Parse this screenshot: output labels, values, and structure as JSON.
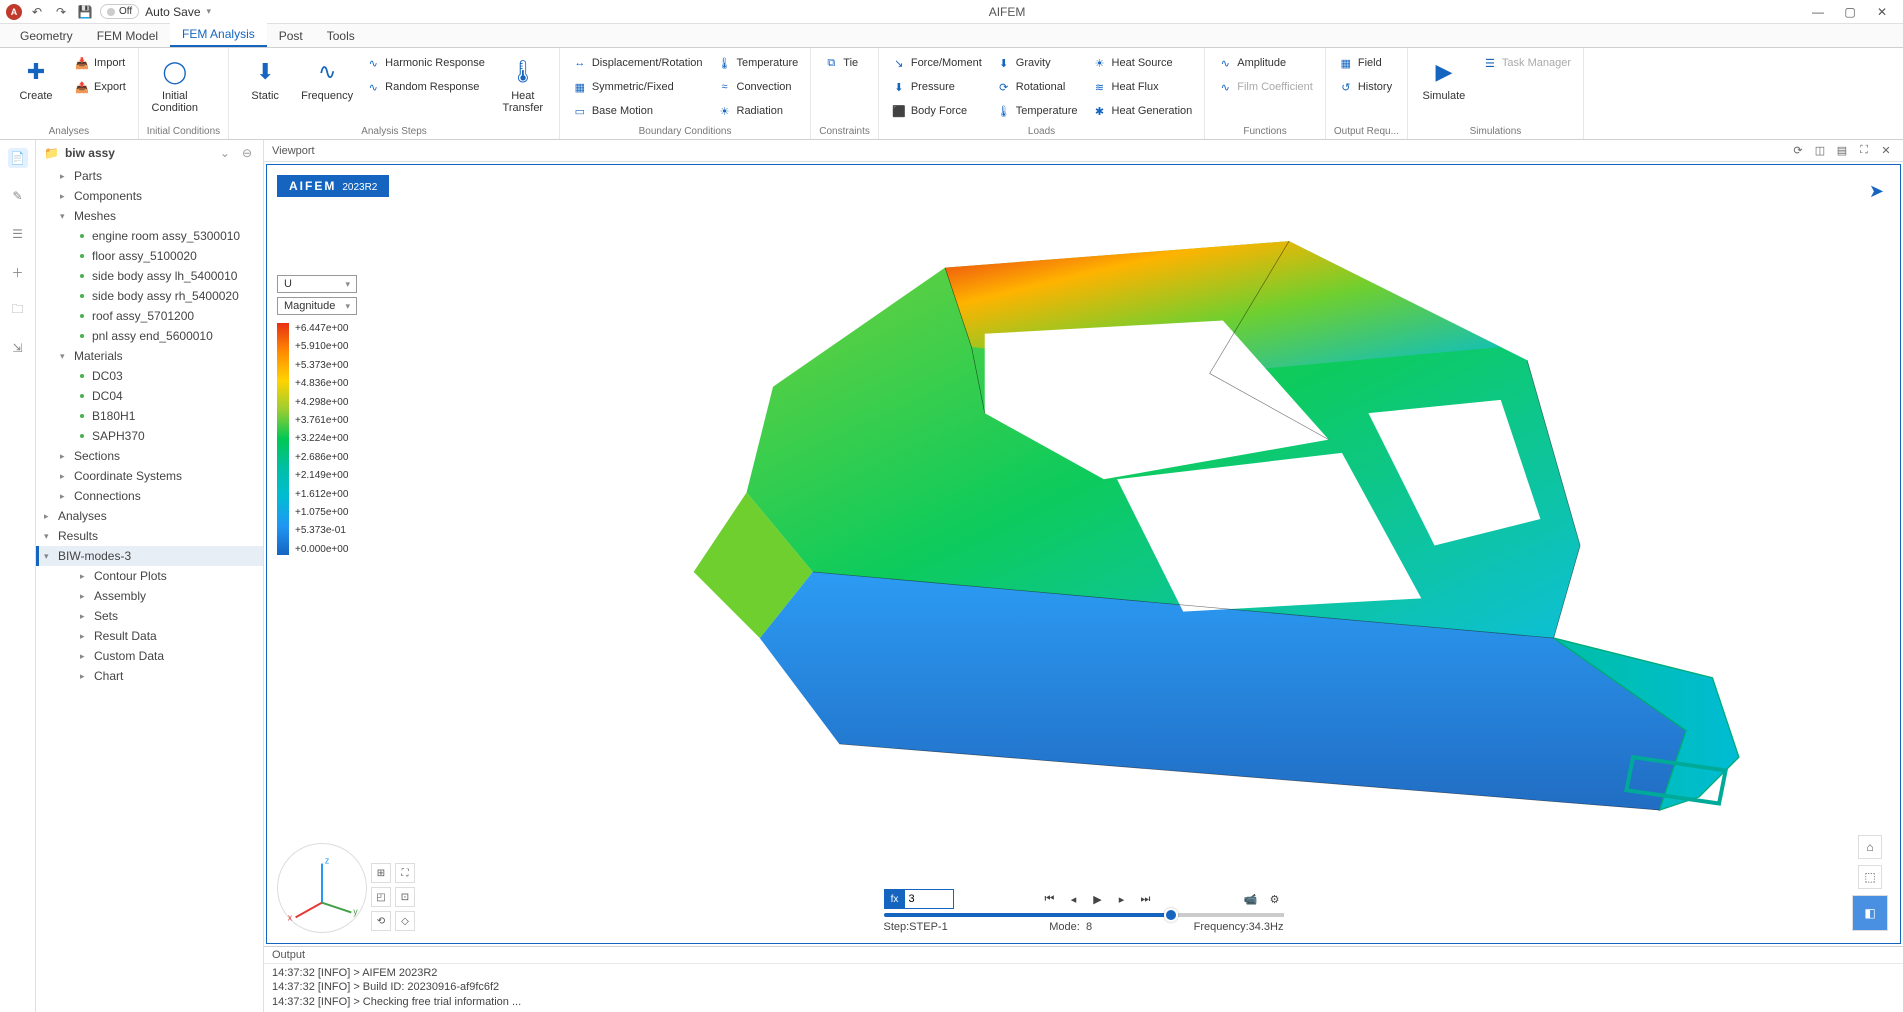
{
  "titlebar": {
    "app_name": "AIFEM",
    "autosave_toggle": "Off",
    "autosave_label": "Auto Save"
  },
  "menu_tabs": [
    "Geometry",
    "FEM Model",
    "FEM Analysis",
    "Post",
    "Tools"
  ],
  "menu_active_index": 2,
  "ribbon": {
    "groups": [
      {
        "name": "Analyses",
        "items": [
          {
            "kind": "big",
            "label": "Create",
            "icon": "create"
          },
          {
            "kind": "col",
            "items": [
              {
                "label": "Import",
                "icon": "import"
              },
              {
                "label": "Export",
                "icon": "export"
              }
            ]
          }
        ]
      },
      {
        "name": "Initial Conditions",
        "items": [
          {
            "kind": "big",
            "label": "Initial\nCondition",
            "icon": "ring"
          }
        ]
      },
      {
        "name": "Analysis Steps",
        "items": [
          {
            "kind": "big",
            "label": "Static",
            "icon": "static"
          },
          {
            "kind": "big",
            "label": "Frequency",
            "icon": "freq"
          },
          {
            "kind": "col",
            "items": [
              {
                "label": "Harmonic Response",
                "icon": "wave"
              },
              {
                "label": "Random Response",
                "icon": "wave"
              }
            ]
          },
          {
            "kind": "big",
            "label": "Heat\nTransfer",
            "icon": "heat"
          }
        ]
      },
      {
        "name": "Boundary Conditions",
        "items": [
          {
            "kind": "col",
            "items": [
              {
                "label": "Displacement/Rotation",
                "icon": "disp"
              },
              {
                "label": "Symmetric/Fixed",
                "icon": "sym"
              },
              {
                "label": "Base Motion",
                "icon": "base"
              }
            ]
          },
          {
            "kind": "col",
            "items": [
              {
                "label": "Temperature",
                "icon": "temp"
              },
              {
                "label": "Convection",
                "icon": "conv"
              },
              {
                "label": "Radiation",
                "icon": "rad"
              }
            ]
          }
        ]
      },
      {
        "name": "Constraints",
        "items": [
          {
            "kind": "col",
            "items": [
              {
                "label": "Tie",
                "icon": "tie"
              }
            ]
          }
        ]
      },
      {
        "name": "Loads",
        "items": [
          {
            "kind": "col",
            "items": [
              {
                "label": "Force/Moment",
                "icon": "force"
              },
              {
                "label": "Pressure",
                "icon": "press"
              },
              {
                "label": "Body Force",
                "icon": "body"
              }
            ]
          },
          {
            "kind": "col",
            "items": [
              {
                "label": "Gravity",
                "icon": "grav"
              },
              {
                "label": "Rotational",
                "icon": "rot"
              },
              {
                "label": "Temperature",
                "icon": "temp"
              }
            ]
          },
          {
            "kind": "col",
            "items": [
              {
                "label": "Heat Source",
                "icon": "hsrc"
              },
              {
                "label": "Heat Flux",
                "icon": "hflux"
              },
              {
                "label": "Heat Generation",
                "icon": "hgen"
              }
            ]
          }
        ]
      },
      {
        "name": "Functions",
        "items": [
          {
            "kind": "col",
            "items": [
              {
                "label": "Amplitude",
                "icon": "amp"
              },
              {
                "label": "Film Coefficient",
                "icon": "film",
                "disabled": true
              }
            ]
          }
        ]
      },
      {
        "name": "Output Requ...",
        "items": [
          {
            "kind": "col",
            "items": [
              {
                "label": "Field",
                "icon": "field"
              },
              {
                "label": "History",
                "icon": "hist"
              }
            ]
          }
        ]
      },
      {
        "name": "Simulations",
        "items": [
          {
            "kind": "big",
            "label": "   Simulate",
            "icon": "sim"
          },
          {
            "kind": "col",
            "items": [
              {
                "label": "Task Manager",
                "icon": "task",
                "disabled": true
              }
            ]
          }
        ]
      }
    ]
  },
  "sidebar": {
    "title": "biw assy",
    "tree": [
      {
        "depth": 1,
        "label": "Parts",
        "exp": "▸"
      },
      {
        "depth": 1,
        "label": "Components",
        "exp": "▸"
      },
      {
        "depth": 1,
        "label": "Meshes",
        "exp": "▾"
      },
      {
        "depth": 2,
        "label": "engine room assy_5300010",
        "leaf": true
      },
      {
        "depth": 2,
        "label": "floor assy_5100020",
        "leaf": true
      },
      {
        "depth": 2,
        "label": "side body assy lh_5400010",
        "leaf": true
      },
      {
        "depth": 2,
        "label": "side body assy rh_5400020",
        "leaf": true
      },
      {
        "depth": 2,
        "label": "roof assy_5701200",
        "leaf": true
      },
      {
        "depth": 2,
        "label": "pnl assy end_5600010",
        "leaf": true
      },
      {
        "depth": 1,
        "label": "Materials",
        "exp": "▾"
      },
      {
        "depth": 2,
        "label": "DC03",
        "leaf": true
      },
      {
        "depth": 2,
        "label": "DC04",
        "leaf": true
      },
      {
        "depth": 2,
        "label": "B180H1",
        "leaf": true
      },
      {
        "depth": 2,
        "label": "SAPH370",
        "leaf": true
      },
      {
        "depth": 1,
        "label": "Sections",
        "exp": "▸"
      },
      {
        "depth": 1,
        "label": "Coordinate Systems",
        "exp": "▸"
      },
      {
        "depth": 1,
        "label": "Connections",
        "exp": "▸"
      },
      {
        "depth": 0,
        "label": "Analyses",
        "exp": "▸"
      },
      {
        "depth": 0,
        "label": "Results",
        "exp": "▾"
      },
      {
        "depth": 1,
        "label": "BIW-modes-3",
        "exp": "▾",
        "selected": true
      },
      {
        "depth": 2,
        "label": "Contour Plots",
        "exp": "▸"
      },
      {
        "depth": 2,
        "label": "Assembly",
        "exp": "▸"
      },
      {
        "depth": 2,
        "label": "Sets",
        "exp": "▸"
      },
      {
        "depth": 2,
        "label": "Result Data",
        "exp": "▸"
      },
      {
        "depth": 2,
        "label": "Custom Data",
        "exp": "▸"
      },
      {
        "depth": 2,
        "label": "Chart",
        "exp": "▸"
      }
    ]
  },
  "viewport": {
    "header": "Viewport",
    "badge_name": "AIFEM",
    "badge_version": "2023R2",
    "legend": {
      "variable": "U",
      "component": "Magnitude",
      "ticks": [
        "+6.447e+00",
        "+5.910e+00",
        "+5.373e+00",
        "+4.836e+00",
        "+4.298e+00",
        "+3.761e+00",
        "+3.224e+00",
        "+2.686e+00",
        "+2.149e+00",
        "+1.612e+00",
        "+1.075e+00",
        "+5.373e-01",
        "+0.000e+00"
      ],
      "colors": [
        "#e83015",
        "#ff8c00",
        "#ffd300",
        "#9acd32",
        "#00c853",
        "#00bfa5",
        "#00bcd4",
        "#2196f3",
        "#1565c0"
      ]
    },
    "playbar": {
      "step_value": "3",
      "step_label": "Step:STEP-1",
      "mode_label": "Mode:",
      "mode_value": "8",
      "freq_label": "Frequency:34.3Hz",
      "slider_percent": 70
    }
  },
  "output": {
    "header": "Output",
    "lines": [
      "14:37:32 [INFO] > AIFEM 2023R2",
      "14:37:32 [INFO] > Build ID: 20230916-af9fc6f2",
      "14:37:32 [INFO] > Checking free trial information ..."
    ]
  }
}
